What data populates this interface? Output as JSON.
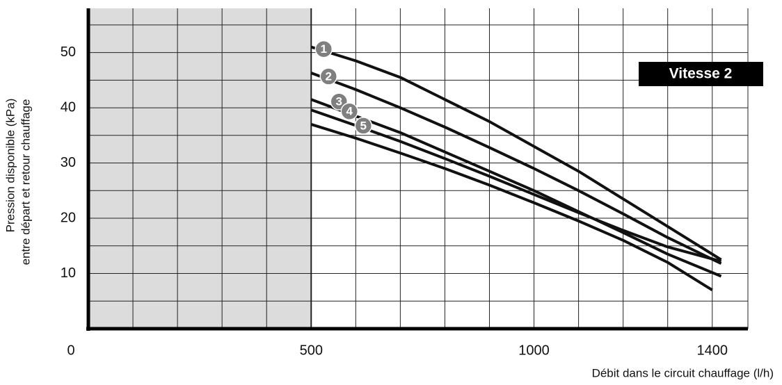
{
  "chart_data": {
    "type": "line",
    "xlabel": "Débit dans le circuit chauffage (l/h)",
    "ylabel": [
      "Pression disponible (kPa)",
      "entre départ et retour chauffage"
    ],
    "annotation": "Vitesse 2",
    "xlim": [
      0,
      1480
    ],
    "ylim": [
      0,
      58
    ],
    "xticks": [
      0,
      500,
      1000,
      1400
    ],
    "yticks": [
      10,
      20,
      30,
      40,
      50
    ],
    "xgrid": [
      100,
      200,
      300,
      400,
      500,
      600,
      700,
      800,
      900,
      1000,
      1100,
      1200,
      1300,
      1400,
      1480
    ],
    "ygrid": [
      5,
      10,
      15,
      20,
      25,
      30,
      35,
      40,
      45,
      50,
      55
    ],
    "shade": [
      0,
      500
    ],
    "shade_color": "#dcdcdc",
    "grid": true,
    "series": [
      {
        "name": "1",
        "color": "#111111",
        "x": [
          500,
          600,
          700,
          800,
          900,
          1000,
          1100,
          1200,
          1300,
          1420
        ],
        "values": [
          51,
          48.5,
          45.5,
          41.5,
          37.5,
          33,
          28.5,
          23.5,
          18.5,
          12.5
        ]
      },
      {
        "name": "2",
        "color": "#111111",
        "x": [
          500,
          600,
          700,
          800,
          900,
          1000,
          1100,
          1200,
          1300,
          1420
        ],
        "values": [
          46.3,
          43.3,
          40,
          36.5,
          32.8,
          29,
          25,
          20.8,
          16.5,
          11.8
        ]
      },
      {
        "name": "3",
        "color": "#111111",
        "x": [
          500,
          600,
          700,
          800,
          900,
          1000,
          1100,
          1200,
          1300,
          1420
        ],
        "values": [
          41.5,
          38.5,
          35.5,
          32,
          28.5,
          25,
          21.2,
          17.4,
          13.5,
          9.5
        ]
      },
      {
        "name": "4",
        "color": "#111111",
        "x": [
          500,
          600,
          700,
          800,
          900,
          1000,
          1100,
          1200,
          1300,
          1420
        ],
        "values": [
          39.6,
          36.8,
          33.9,
          30.8,
          27.6,
          24.3,
          21,
          17.8,
          14.8,
          12.2
        ]
      },
      {
        "name": "5",
        "color": "#111111",
        "x": [
          500,
          600,
          700,
          800,
          900,
          1000,
          1100,
          1200,
          1300,
          1400
        ],
        "values": [
          37,
          34.5,
          31.8,
          29,
          26,
          22.8,
          19.5,
          16,
          12,
          7
        ]
      }
    ]
  }
}
